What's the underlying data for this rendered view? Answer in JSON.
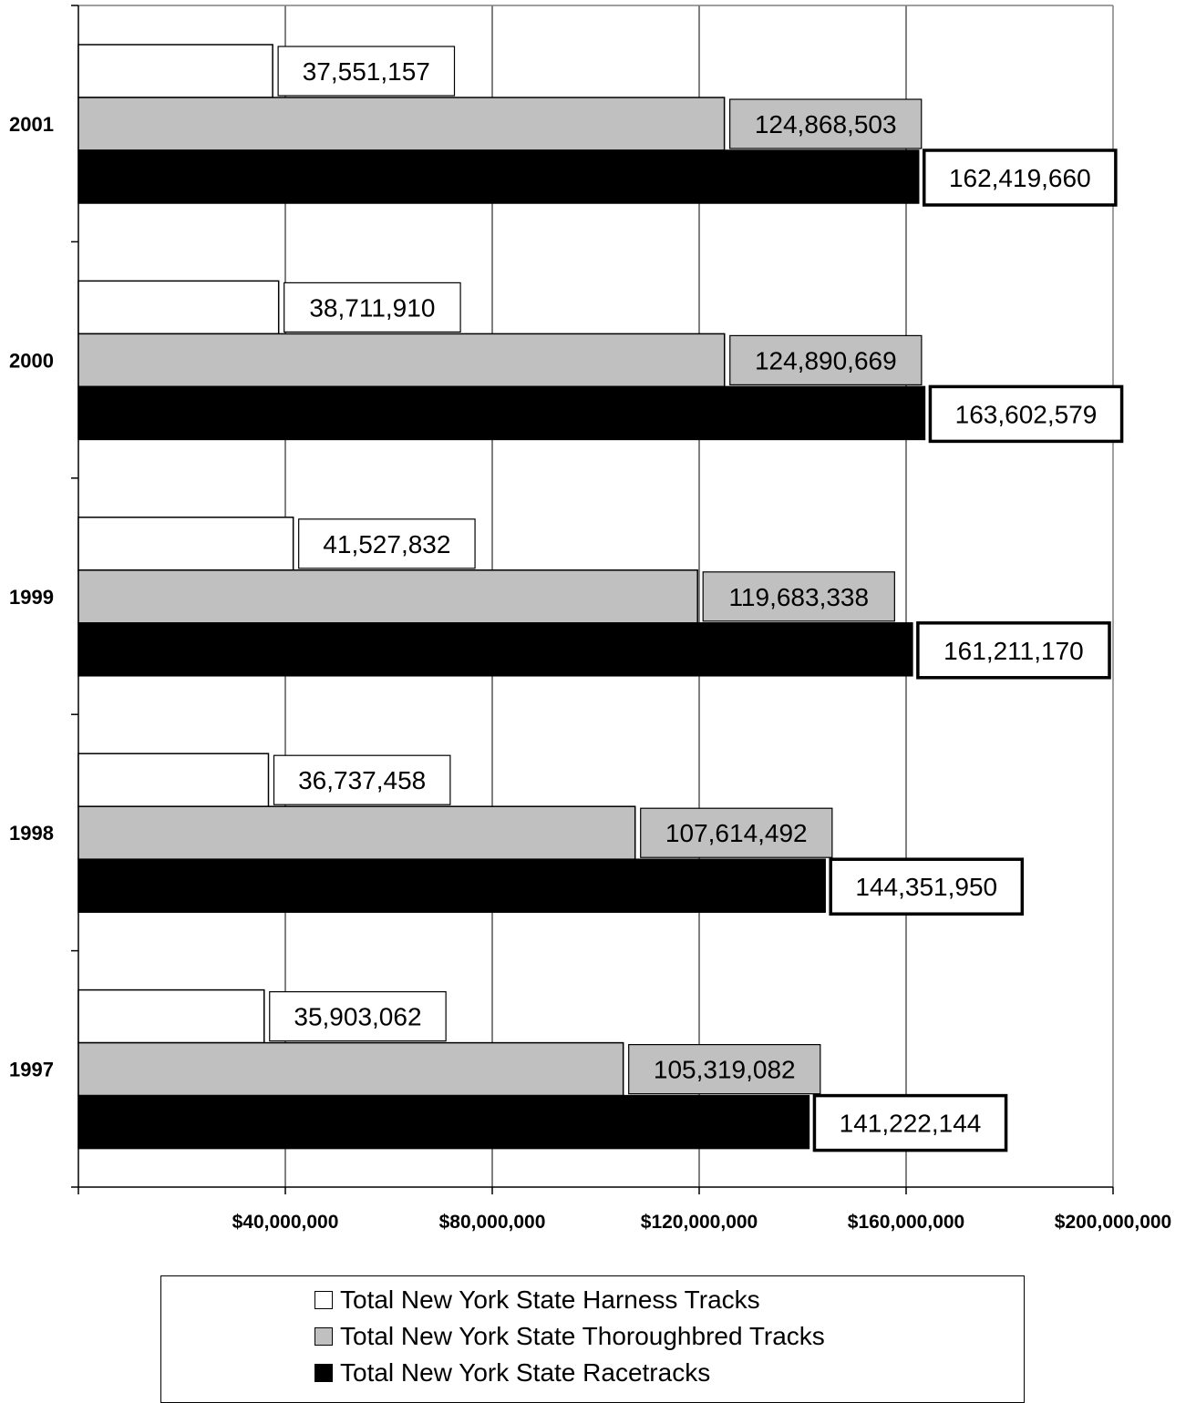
{
  "chart_data": {
    "type": "bar",
    "orientation": "horizontal",
    "categories": [
      "2001",
      "2000",
      "1999",
      "1998",
      "1997"
    ],
    "series": [
      {
        "name": "Total New York State Harness Tracks",
        "color": "#ffffff",
        "values": [
          37551157,
          38711910,
          41527832,
          36737458,
          35903062
        ],
        "labels": [
          "37,551,157",
          "38,711,910",
          "41,527,832",
          "36,737,458",
          "35,903,062"
        ]
      },
      {
        "name": "Total New York State Thoroughbred Tracks",
        "color": "#c0c0c0",
        "values": [
          124868503,
          124890669,
          119683338,
          107614492,
          105319082
        ],
        "labels": [
          "124,868,503",
          "124,890,669",
          "119,683,338",
          "107,614,492",
          "105,319,082"
        ]
      },
      {
        "name": "Total New York State Racetracks",
        "color": "#000000",
        "values": [
          162419660,
          163602579,
          161211170,
          144351950,
          141222144
        ],
        "labels": [
          "162,419,660",
          "163,602,579",
          "161,211,170",
          "144,351,950",
          "141,222,144"
        ]
      }
    ],
    "xlim": [
      0,
      200000000
    ],
    "x_ticks": [
      40000000,
      80000000,
      120000000,
      160000000,
      200000000
    ],
    "x_tick_labels": [
      "$40,000,000",
      "$80,000,000",
      "$120,000,000",
      "$160,000,000",
      "$200,000,000"
    ],
    "grid": "vertical",
    "legend_position": "bottom",
    "title": "",
    "xlabel": "",
    "ylabel": ""
  }
}
